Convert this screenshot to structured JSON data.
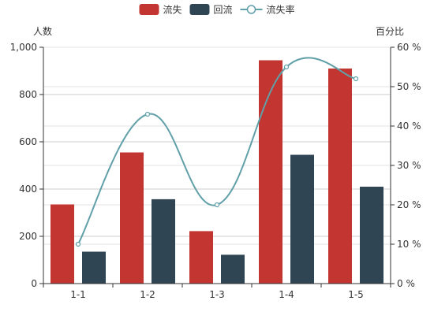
{
  "chart_data": {
    "type": "bar",
    "categories": [
      "1-1",
      "1-2",
      "1-3",
      "1-4",
      "1-5"
    ],
    "series": [
      {
        "name": "流失",
        "kind": "bar",
        "axis": "left",
        "color": "#c23531",
        "values": [
          335,
          555,
          222,
          945,
          910
        ]
      },
      {
        "name": "回流",
        "kind": "bar",
        "axis": "left",
        "color": "#2f4554",
        "values": [
          135,
          357,
          122,
          545,
          410
        ]
      },
      {
        "name": "流失率",
        "kind": "line",
        "axis": "right",
        "color": "#61a0a8",
        "values": [
          10,
          43,
          20,
          55,
          52
        ]
      }
    ],
    "yaxis_left": {
      "label": "人数",
      "min": 0,
      "max": 1000,
      "ticks": [
        "0",
        "200",
        "400",
        "600",
        "800",
        "1,000"
      ]
    },
    "yaxis_right": {
      "label": "百分比",
      "min": 0,
      "max": 60,
      "ticks": [
        "0 %",
        "10 %",
        "20 %",
        "30 %",
        "40 %",
        "50 %",
        "60 %"
      ]
    },
    "legend_position": "top-center",
    "grid": true
  }
}
